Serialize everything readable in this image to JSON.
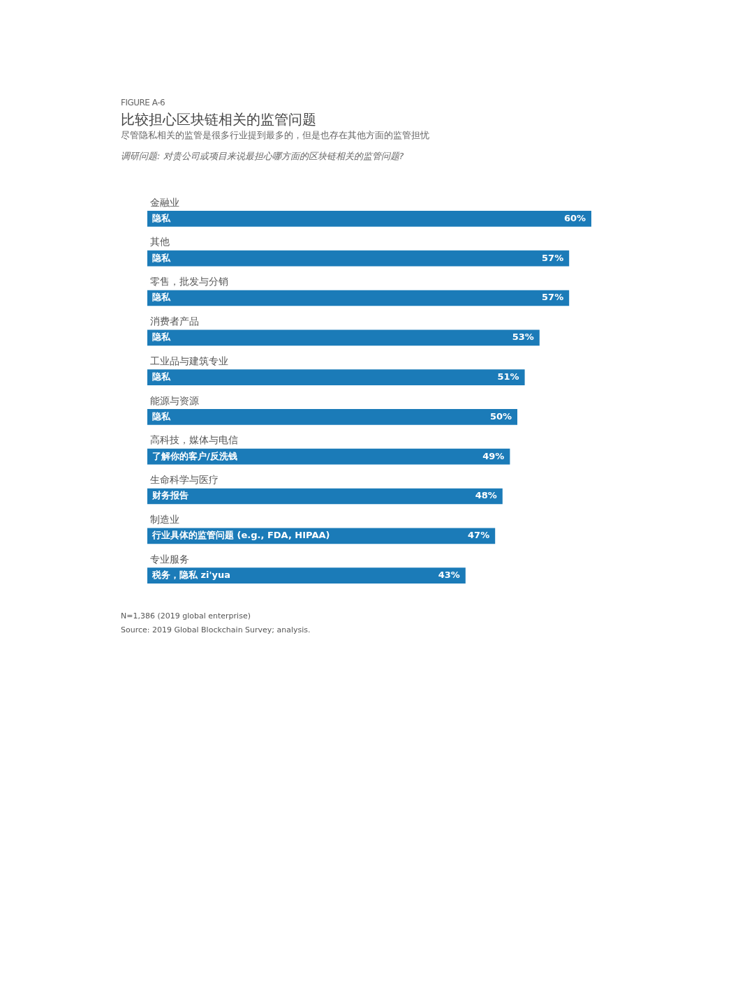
{
  "chart_data": {
    "type": "bar",
    "orientation": "horizontal",
    "title": "比较担心区块链相关的监管问题",
    "subtitle": "尽管隐私相关的监管是很多行业提到最多的，但是也存在其他方面的监管担忧",
    "categories": [
      "金融业",
      "其他",
      "零售，批发与分销",
      "消费者产品",
      "工业品与建筑专业",
      "能源与资源",
      "高科技，媒体与电信",
      "生命科学与医疗",
      "制造业",
      "专业服务"
    ],
    "values": [
      60,
      57,
      57,
      53,
      51,
      50,
      49,
      48,
      47,
      43
    ],
    "value_labels": [
      "60%",
      "57%",
      "57%",
      "53%",
      "51%",
      "50%",
      "49%",
      "48%",
      "47%",
      "43%"
    ],
    "color": "#1b7bb8",
    "annotations": [
      "FIGURE A-6",
      "调研问题: 对贵公司或项目来说最担心哪方面的区块链相关的监管问题?",
      "N=1,386 (2019 global enterprise)",
      "Source: 2019 Global Blockchain Survey; analysis.",
      "隐私",
      "隐私",
      "隐私",
      "隐私",
      "隐私",
      "隐私",
      "了解你的客户/反洗钱",
      "财务报告",
      "行业具体的监管问题 (e.g., FDA, HIPAA)",
      "税务，隐私 zi'yua"
    ],
    "legend": false
  }
}
